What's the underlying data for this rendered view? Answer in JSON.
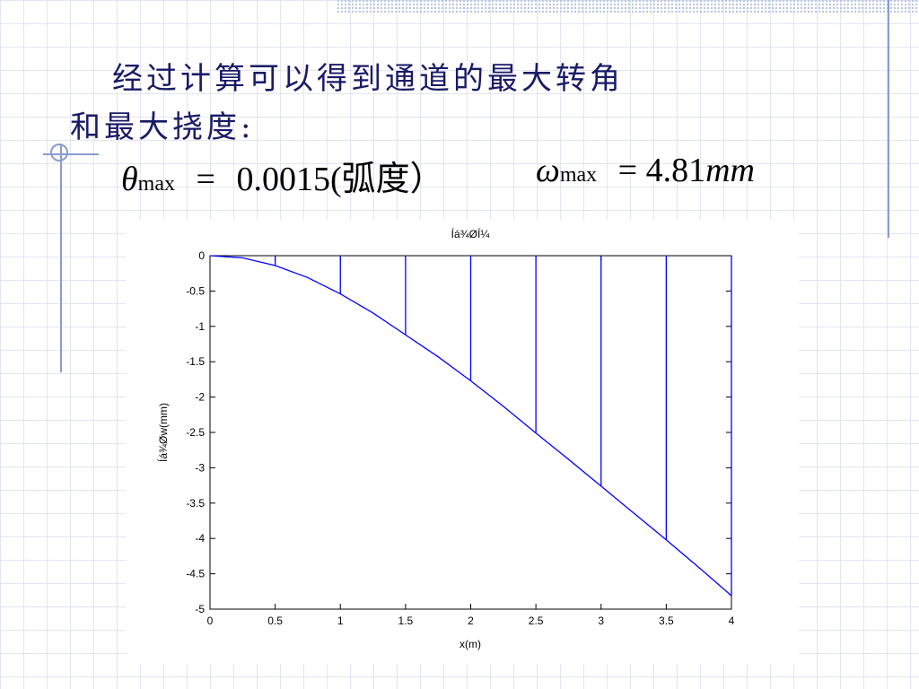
{
  "slide": {
    "line1": "经过计算可以得到通道的最大转角",
    "line2": "和最大挠度:",
    "theta": {
      "symbol": "θ",
      "subscript": "max",
      "equals": "=",
      "value": "0.0015(弧度）"
    },
    "omega": {
      "symbol": "ω",
      "subscript": "max",
      "equals": "= 4.81",
      "unit": "mm"
    }
  },
  "chart_data": {
    "type": "line",
    "title": "Íá¾ØÍ¼",
    "xlabel": "x(m)",
    "ylabel": "Íá¾Øw(mm)",
    "xlim": [
      0,
      4
    ],
    "ylim": [
      -5,
      0
    ],
    "xticks": [
      0,
      0.5,
      1,
      1.5,
      2,
      2.5,
      3,
      3.5,
      4
    ],
    "yticks": [
      0,
      -0.5,
      -1,
      -1.5,
      -2,
      -2.5,
      -3,
      -3.5,
      -4,
      -4.5,
      -5
    ],
    "grid": false,
    "series": [
      {
        "type": "line",
        "color": "#0000ff",
        "x": [
          0,
          0.25,
          0.5,
          0.75,
          1,
          1.25,
          1.5,
          1.75,
          2,
          2.25,
          2.5,
          2.75,
          3,
          3.25,
          3.5,
          3.75,
          4
        ],
        "values": [
          0,
          -0.03,
          -0.14,
          -0.31,
          -0.54,
          -0.81,
          -1.12,
          -1.43,
          -1.77,
          -2.13,
          -2.51,
          -2.88,
          -3.26,
          -3.64,
          -4.02,
          -4.41,
          -4.81
        ]
      },
      {
        "type": "stem",
        "color": "#0000ff",
        "x": [
          0.5,
          1,
          1.5,
          2,
          2.5,
          3,
          3.5,
          4
        ],
        "values": [
          -0.14,
          -0.54,
          -1.12,
          -1.77,
          -2.51,
          -3.26,
          -4.02,
          -4.81
        ]
      }
    ]
  }
}
